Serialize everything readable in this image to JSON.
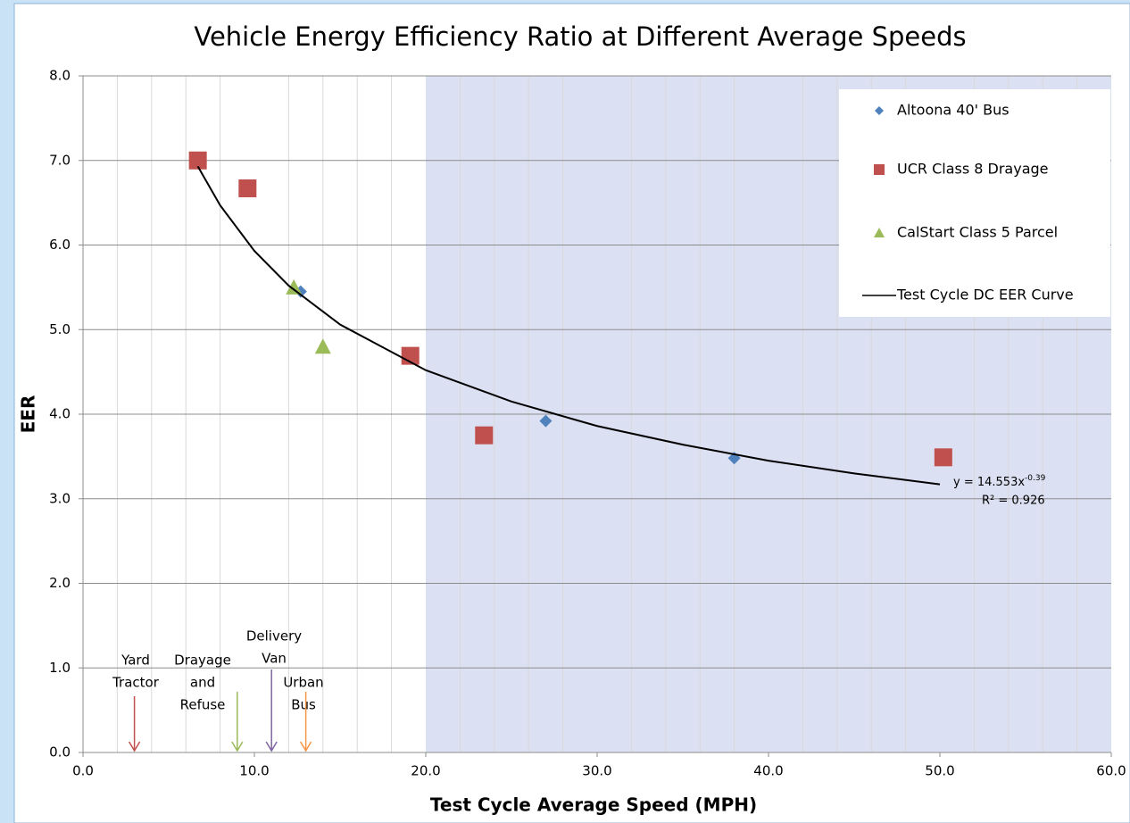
{
  "chart_data": {
    "type": "scatter",
    "title": "Vehicle Energy Efficiency Ratio at Different Average Speeds",
    "xlabel": "Test Cycle Average Speed (MPH)",
    "ylabel": "EER",
    "xlim": [
      0,
      60
    ],
    "ylim": [
      0,
      8
    ],
    "xticks": [
      {
        "value": 0,
        "label": "0.0"
      },
      {
        "value": 10,
        "label": "10.0"
      },
      {
        "value": 20,
        "label": "20.0"
      },
      {
        "value": 30,
        "label": "30.0"
      },
      {
        "value": 40,
        "label": "40.0"
      },
      {
        "value": 50,
        "label": "50.0"
      },
      {
        "value": 60,
        "label": "60.0"
      }
    ],
    "yticks": [
      {
        "value": 0,
        "label": "0.0"
      },
      {
        "value": 1,
        "label": "1.0"
      },
      {
        "value": 2,
        "label": "2.0"
      },
      {
        "value": 3,
        "label": "3.0"
      },
      {
        "value": 4,
        "label": "4.0"
      },
      {
        "value": 5,
        "label": "5.0"
      },
      {
        "value": 6,
        "label": "6.0"
      },
      {
        "value": 7,
        "label": "7.0"
      },
      {
        "value": 8,
        "label": "8.0"
      }
    ],
    "x_minor_grid": [
      2,
      4,
      6,
      8,
      12,
      14,
      16,
      18,
      22,
      24,
      26,
      28,
      32,
      34,
      36,
      38,
      42,
      44,
      46,
      48,
      52,
      54,
      56,
      58
    ],
    "grid": true,
    "shaded_xrange": [
      20,
      60
    ],
    "shaded_color": "#dce0f3",
    "legend": "upper right",
    "series": [
      {
        "name": "Altoona 40' Bus",
        "color": "#4f81bd",
        "marker": "diamond",
        "x": [
          12.7,
          27.0,
          38.0
        ],
        "values": [
          5.45,
          3.92,
          3.48
        ]
      },
      {
        "name": "UCR Class 8 Drayage",
        "color": "#c0504d",
        "marker": "square",
        "x": [
          6.7,
          9.6,
          19.1,
          23.4,
          50.2
        ],
        "values": [
          7.0,
          6.67,
          4.69,
          3.75,
          3.49
        ]
      },
      {
        "name": "CalStart Class 5 Parcel",
        "color": "#9bbb59",
        "marker": "triangle",
        "x": [
          12.3,
          14.0
        ],
        "values": [
          5.5,
          4.8
        ]
      },
      {
        "name": "Test Cycle DC EER Curve",
        "color": "#000000",
        "marker": "line",
        "x": [
          6.7,
          8,
          10,
          12,
          15,
          20,
          25,
          30,
          35,
          40,
          45,
          50
        ],
        "values": [
          6.93,
          6.47,
          5.93,
          5.52,
          5.06,
          4.52,
          4.15,
          3.86,
          3.64,
          3.45,
          3.3,
          3.17
        ]
      }
    ],
    "equation": "y = 14.553x",
    "equation_exponent": "-0.39",
    "r_squared": "R² = 0.926",
    "annotations": [
      {
        "lines": [
          "Yard",
          "Tractor"
        ],
        "x": 3,
        "color": "#c0504d"
      },
      {
        "lines": [
          "Drayage",
          "and",
          "Refuse"
        ],
        "x": 9,
        "color": "#9bbb59"
      },
      {
        "lines": [
          "Delivery",
          "Van"
        ],
        "x": 11,
        "color": "#8064a2"
      },
      {
        "lines": [
          "Urban",
          "Bus"
        ],
        "x": 13,
        "color": "#f79646"
      }
    ]
  }
}
